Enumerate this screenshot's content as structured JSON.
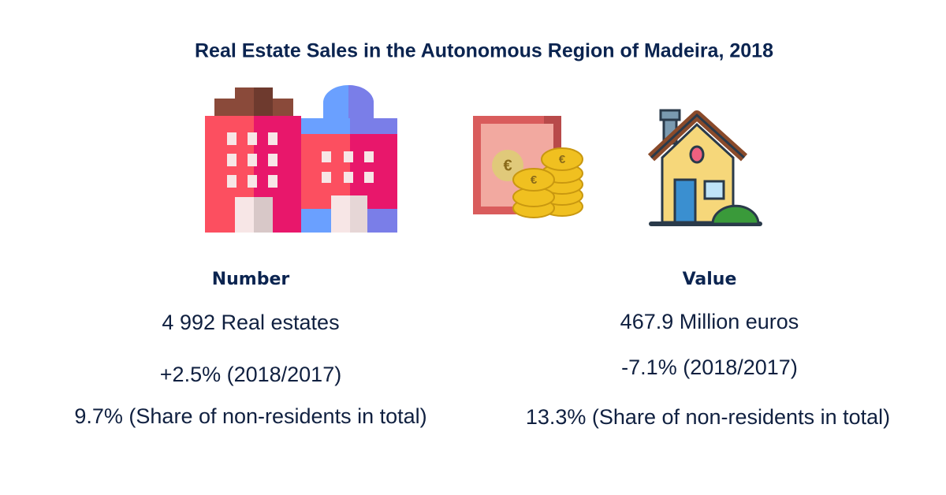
{
  "title": "Real Estate Sales in the Autonomous Region of Madeira, 2018",
  "panels": [
    {
      "heading": "Number",
      "lines": [
        "4 992 Real estates",
        "+2.5% (2018/2017)",
        "9.7% (Share of non-residents in total)"
      ]
    },
    {
      "heading": "Value",
      "lines": [
        "467.9 Million euros",
        "-7.1% (2018/2017)",
        "13.3% (Share of non-residents in total)"
      ]
    }
  ]
}
